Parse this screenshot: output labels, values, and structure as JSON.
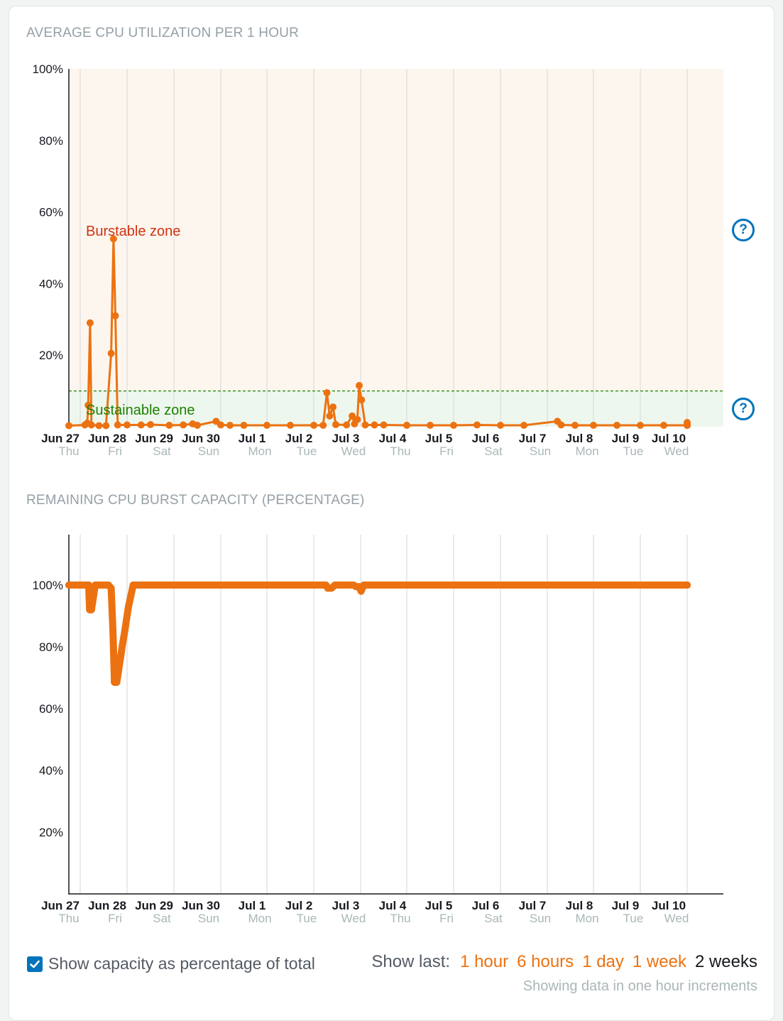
{
  "chart_data": [
    {
      "type": "line",
      "title": "AVERAGE CPU UTILIZATION PER 1 HOUR",
      "ylim": [
        0,
        100
      ],
      "y_ticks": [
        "100%",
        "80%",
        "60%",
        "40%",
        "20%"
      ],
      "x_ticks": [
        {
          "date": "Jun 27",
          "day": "Thu"
        },
        {
          "date": "Jun 28",
          "day": "Fri"
        },
        {
          "date": "Jun 29",
          "day": "Sat"
        },
        {
          "date": "Jun 30",
          "day": "Sun"
        },
        {
          "date": "Jul 1",
          "day": "Mon"
        },
        {
          "date": "Jul 2",
          "day": "Tue"
        },
        {
          "date": "Jul 3",
          "day": "Wed"
        },
        {
          "date": "Jul 4",
          "day": "Thu"
        },
        {
          "date": "Jul 5",
          "day": "Fri"
        },
        {
          "date": "Jul 6",
          "day": "Sat"
        },
        {
          "date": "Jul 7",
          "day": "Sun"
        },
        {
          "date": "Jul 8",
          "day": "Mon"
        },
        {
          "date": "Jul 9",
          "day": "Tue"
        },
        {
          "date": "Jul 10",
          "day": "Wed"
        }
      ],
      "zones": {
        "burstable_label": "Burstable zone",
        "sustainable_label": "Sustainable zone",
        "threshold": 10
      },
      "points": [
        [
          0.0,
          0.3
        ],
        [
          0.1,
          0.5
        ],
        [
          0.15,
          1.0
        ],
        [
          0.17,
          6.0
        ],
        [
          0.21,
          29.0
        ],
        [
          0.24,
          0.5
        ],
        [
          0.4,
          0.3
        ],
        [
          0.55,
          0.3
        ],
        [
          0.66,
          20.5
        ],
        [
          0.71,
          52.5
        ],
        [
          0.75,
          31.0
        ],
        [
          0.8,
          0.5
        ],
        [
          1.0,
          0.5
        ],
        [
          1.3,
          0.5
        ],
        [
          1.5,
          0.6
        ],
        [
          1.9,
          0.4
        ],
        [
          2.2,
          0.5
        ],
        [
          2.4,
          0.8
        ],
        [
          2.5,
          0.4
        ],
        [
          2.9,
          1.5
        ],
        [
          3.0,
          0.5
        ],
        [
          3.2,
          0.4
        ],
        [
          3.5,
          0.4
        ],
        [
          4.0,
          0.4
        ],
        [
          4.5,
          0.4
        ],
        [
          5.0,
          0.4
        ],
        [
          5.2,
          0.4
        ],
        [
          5.28,
          9.5
        ],
        [
          5.34,
          3.0
        ],
        [
          5.41,
          5.5
        ],
        [
          5.47,
          0.6
        ],
        [
          5.7,
          0.5
        ],
        [
          5.82,
          3.0
        ],
        [
          5.87,
          0.8
        ],
        [
          5.93,
          2.0
        ],
        [
          5.97,
          11.5
        ],
        [
          6.02,
          7.5
        ],
        [
          6.1,
          0.5
        ],
        [
          6.3,
          0.5
        ],
        [
          6.5,
          0.5
        ],
        [
          7.0,
          0.4
        ],
        [
          7.5,
          0.4
        ],
        [
          8.0,
          0.4
        ],
        [
          8.5,
          0.5
        ],
        [
          9.0,
          0.4
        ],
        [
          9.5,
          0.4
        ],
        [
          10.22,
          1.5
        ],
        [
          10.3,
          0.5
        ],
        [
          10.6,
          0.4
        ],
        [
          11.0,
          0.4
        ],
        [
          11.5,
          0.4
        ],
        [
          12.0,
          0.4
        ],
        [
          12.5,
          0.4
        ],
        [
          13.0,
          0.4
        ],
        [
          13.38,
          1.2
        ],
        [
          13.45,
          0.5
        ],
        [
          13.8,
          0.4
        ],
        [
          13.9,
          0.5
        ],
        [
          14.0,
          0.8
        ],
        [
          14.05,
          0.4
        ]
      ]
    },
    {
      "type": "line",
      "title": "REMAINING CPU BURST CAPACITY (PERCENTAGE)",
      "ylim": [
        0,
        100
      ],
      "y_ticks": [
        "100%",
        "80%",
        "60%",
        "40%",
        "20%"
      ],
      "x_ticks": [
        {
          "date": "Jun 27",
          "day": "Thu"
        },
        {
          "date": "Jun 28",
          "day": "Fri"
        },
        {
          "date": "Jun 29",
          "day": "Sat"
        },
        {
          "date": "Jun 30",
          "day": "Sun"
        },
        {
          "date": "Jul 1",
          "day": "Mon"
        },
        {
          "date": "Jul 2",
          "day": "Tue"
        },
        {
          "date": "Jul 3",
          "day": "Wed"
        },
        {
          "date": "Jul 4",
          "day": "Thu"
        },
        {
          "date": "Jul 5",
          "day": "Fri"
        },
        {
          "date": "Jul 6",
          "day": "Sat"
        },
        {
          "date": "Jul 7",
          "day": "Sun"
        },
        {
          "date": "Jul 8",
          "day": "Mon"
        },
        {
          "date": "Jul 9",
          "day": "Tue"
        },
        {
          "date": "Jul 10",
          "day": "Wed"
        }
      ],
      "points": [
        [
          0.0,
          100
        ],
        [
          0.1,
          100
        ],
        [
          0.18,
          100
        ],
        [
          0.2,
          92
        ],
        [
          0.24,
          92
        ],
        [
          0.28,
          96
        ],
        [
          0.32,
          100
        ],
        [
          0.45,
          100
        ],
        [
          0.6,
          100
        ],
        [
          0.66,
          99
        ],
        [
          0.7,
          84.5
        ],
        [
          0.73,
          68.5
        ],
        [
          0.78,
          68.5
        ],
        [
          0.82,
          72.5
        ],
        [
          0.86,
          76.5
        ],
        [
          0.9,
          80.5
        ],
        [
          0.95,
          85
        ],
        [
          0.99,
          89
        ],
        [
          1.03,
          93
        ],
        [
          1.08,
          96.5
        ],
        [
          1.13,
          100
        ],
        [
          1.5,
          100
        ],
        [
          2.0,
          100
        ],
        [
          2.5,
          100
        ],
        [
          3.0,
          100
        ],
        [
          3.5,
          100
        ],
        [
          4.0,
          100
        ],
        [
          4.5,
          100
        ],
        [
          5.0,
          100
        ],
        [
          5.26,
          100
        ],
        [
          5.3,
          99
        ],
        [
          5.38,
          99
        ],
        [
          5.45,
          100
        ],
        [
          5.7,
          100
        ],
        [
          5.85,
          100
        ],
        [
          5.9,
          99.5
        ],
        [
          5.97,
          99.5
        ],
        [
          6.01,
          98
        ],
        [
          6.07,
          100
        ],
        [
          6.5,
          100
        ],
        [
          7.0,
          100
        ],
        [
          7.5,
          100
        ],
        [
          8.0,
          100
        ],
        [
          8.5,
          100
        ],
        [
          9.0,
          100
        ],
        [
          9.5,
          100
        ],
        [
          10.0,
          100
        ],
        [
          10.5,
          100
        ],
        [
          11.0,
          100
        ],
        [
          11.5,
          100
        ],
        [
          12.0,
          100
        ],
        [
          12.5,
          100
        ],
        [
          13.0,
          100
        ],
        [
          13.5,
          100
        ],
        [
          14.0,
          100
        ],
        [
          14.05,
          100
        ]
      ]
    }
  ],
  "help_icon_glyph": "?",
  "footer": {
    "checkbox_label": "Show capacity as percentage of total",
    "checkbox_checked": true,
    "show_last_label": "Show last:",
    "ranges": [
      "1 hour",
      "6 hours",
      "1 day",
      "1 week"
    ],
    "current_range": "2 weeks",
    "increments_text": "Showing data in one hour increments"
  },
  "colors": {
    "series": "#ec7211",
    "burstable_fill": "#fdf6ef",
    "sustainable_fill": "#eef7ee",
    "burstable_text": "#d13212",
    "sustainable_text": "#1d8102",
    "threshold_line": "#1d8102",
    "link": "#ec7211",
    "help": "#0073bb"
  }
}
